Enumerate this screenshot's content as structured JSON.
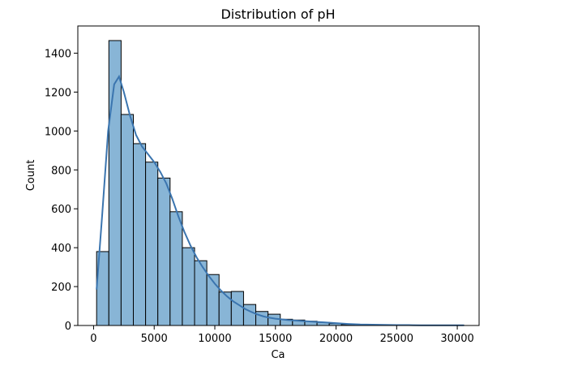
{
  "chart_data": {
    "type": "bar",
    "title": "Distribution of pH",
    "xlabel": "Ca",
    "ylabel": "Count",
    "xlim": [
      -1300,
      31800
    ],
    "ylim": [
      0,
      1540
    ],
    "xticks": [
      0,
      5000,
      10000,
      15000,
      20000,
      25000,
      30000
    ],
    "yticks": [
      0,
      200,
      400,
      600,
      800,
      1000,
      1200,
      1400
    ],
    "grid": false,
    "legend": "none",
    "bin_edges": [
      250,
      1260,
      2270,
      3280,
      4290,
      5300,
      6310,
      7320,
      8330,
      9340,
      10350,
      11360,
      12370,
      13380,
      14390,
      15400,
      16410,
      17420,
      18430,
      19440,
      20450,
      21460,
      22470,
      23480,
      24490,
      25500,
      26510,
      27520,
      28530,
      29540,
      30550
    ],
    "counts": [
      380,
      1465,
      1085,
      935,
      840,
      758,
      585,
      400,
      333,
      262,
      172,
      175,
      108,
      72,
      58,
      32,
      28,
      22,
      16,
      10,
      5,
      4,
      3,
      2,
      2,
      1,
      1,
      1,
      1,
      1
    ],
    "kde": {
      "x": [
        250,
        700,
        1200,
        1700,
        2100,
        2500,
        3000,
        3500,
        4000,
        4500,
        5000,
        5500,
        6000,
        6500,
        7000,
        7500,
        8000,
        8500,
        9000,
        9500,
        10000,
        10500,
        11000,
        11500,
        12000,
        12500,
        13000,
        13500,
        14000,
        14500,
        15000,
        16000,
        17000,
        18000,
        19000,
        20000,
        21000,
        22000,
        23000,
        24000,
        25000,
        26000,
        27000,
        28000,
        29000,
        30550
      ],
      "y": [
        185,
        560,
        1000,
        1240,
        1280,
        1200,
        1080,
        980,
        920,
        880,
        840,
        790,
        730,
        650,
        560,
        480,
        410,
        350,
        300,
        255,
        215,
        180,
        150,
        125,
        105,
        85,
        70,
        57,
        47,
        40,
        35,
        28,
        24,
        20,
        16,
        12,
        8,
        5,
        4,
        3,
        2,
        2,
        1,
        1,
        1,
        1
      ]
    },
    "colors": {
      "bar_fill": "#88b5d6",
      "bar_edge": "#000000",
      "kde_line": "#3b75af"
    }
  }
}
